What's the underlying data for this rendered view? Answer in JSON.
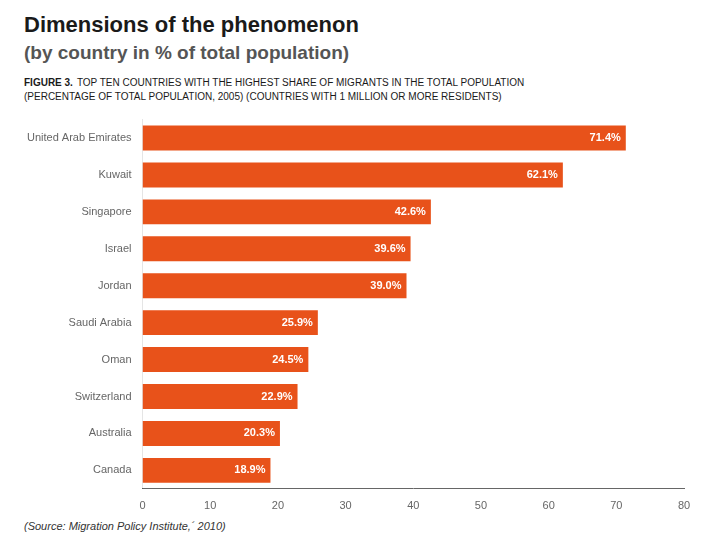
{
  "chart_data": {
    "type": "bar",
    "orientation": "horizontal",
    "title": "Dimensions of the phenomenon",
    "subtitle": "(by country in % of total population)",
    "annotations": [
      "FIGURE 3.",
      "TOP TEN COUNTRIES WITH THE HIGHEST SHARE OF MIGRANTS IN THE TOTAL POPULATION",
      "(PERCENTAGE OF TOTAL POPULATION, 2005) (COUNTRIES WITH 1 MILLION OR MORE RESIDENTS)",
      "(Source: Migration Policy Institute,´ 2010)"
    ],
    "categories": [
      "United Arab Emirates",
      "Kuwait",
      "Singapore",
      "Israel",
      "Jordan",
      "Saudi Arabia",
      "Oman",
      "Switzerland",
      "Australia",
      "Canada"
    ],
    "values": [
      71.4,
      62.1,
      42.6,
      39.6,
      39.0,
      25.9,
      24.5,
      22.9,
      20.3,
      18.9
    ],
    "value_labels": [
      "71.4%",
      "62.1%",
      "42.6%",
      "39.6%",
      "39.0%",
      "25.9%",
      "24.5%",
      "22.9%",
      "20.3%",
      "18.9%"
    ],
    "data_labels": true,
    "color": "#E8521A",
    "xlim": [
      0,
      80
    ],
    "xticks": [
      0,
      10,
      20,
      30,
      40,
      50,
      60,
      70,
      80
    ],
    "grid": false
  }
}
